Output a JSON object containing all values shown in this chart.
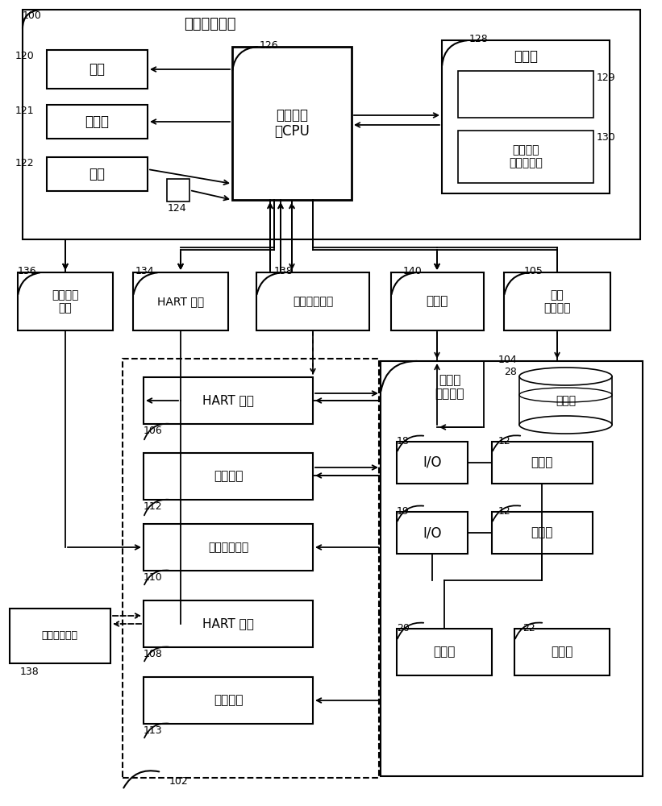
{
  "fig_width": 8.21,
  "fig_height": 10.0,
  "bg_color": "#ffffff",
  "labels": {
    "main_outer": "资产管理系统",
    "display": "显示",
    "printer": "打印机",
    "keyboard": "键盘",
    "os_cpu": "操作系统\n和CPU",
    "storage": "存储器",
    "asset_db": "资产管理\n系统数据库",
    "fieldbus_iface": "现场总线\n接口",
    "hart_iface": "HART 接口",
    "handheld_top": "手持通信装置",
    "ethernet": "以太网",
    "asset_mgmt_top": "资产\n管理系统",
    "hart_dev1": "HART 设备",
    "legacy_dev1": "传统设备",
    "fieldbus_dev": "现场总线设备",
    "hart_dev2": "HART 设备",
    "legacy_dev2": "传统设备",
    "handheld_bot": "手持通信装置",
    "dcs_label": "分布式\n控制系统",
    "database": "数据库",
    "io1": "I/O",
    "controller1": "控制器",
    "io2": "I/O",
    "controller2": "控制器",
    "workstation1": "工作站",
    "workstation2": "工作站"
  },
  "ref_nums": {
    "outer": "100",
    "display": "120",
    "printer": "121",
    "keyboard": "122",
    "modem": "124",
    "os_cpu": "126",
    "storage": "128",
    "db_empty": "129",
    "asset_db": "130",
    "fieldbus_iface": "136",
    "hart_iface": "134",
    "handheld_top": "138",
    "ethernet": "140",
    "asset_mgmt_top": "105",
    "hart_dev1": "106",
    "legacy_dev1": "112",
    "fieldbus_dev": "110",
    "hart_dev2": "108",
    "legacy_dev2": "113",
    "handheld_bot": "138",
    "dcs": "104",
    "database_dcs": "28",
    "io1": "18",
    "controller1": "12",
    "io2": "19",
    "controller2": "12",
    "workstation1": "20",
    "workstation2": "22",
    "dashed_box": "102"
  }
}
